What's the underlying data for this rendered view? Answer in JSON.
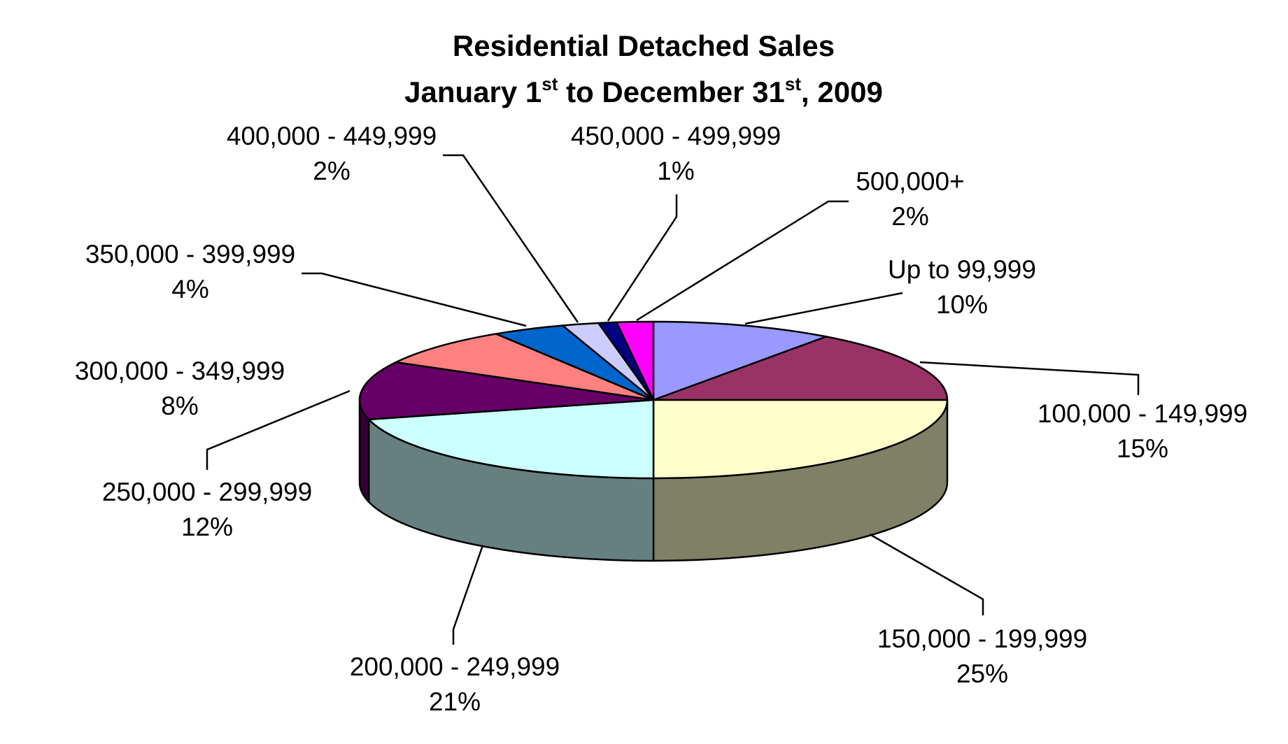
{
  "chart_data": {
    "type": "pie",
    "title_line1": "Residential Detached Sales",
    "title_line2": {
      "before_sup1": "January 1",
      "sup1": "st",
      "mid": " to December 31",
      "sup2": "st",
      "after": ", 2009"
    },
    "slices": [
      {
        "label": "Up to 99,999",
        "percent": "10%",
        "value": 10,
        "color": "#9999FF"
      },
      {
        "label": "100,000 - 149,999",
        "percent": "15%",
        "value": 15,
        "color": "#993366"
      },
      {
        "label": "150,000 - 199,999",
        "percent": "25%",
        "value": 25,
        "color": "#FFFFCC"
      },
      {
        "label": "200,000 - 249,999",
        "percent": "21%",
        "value": 21,
        "color": "#CCFFFF"
      },
      {
        "label": "250,000 - 299,999",
        "percent": "12%",
        "value": 12,
        "color": "#660066"
      },
      {
        "label": "300,000 - 349,999",
        "percent": "8%",
        "value": 8,
        "color": "#FF8080"
      },
      {
        "label": "350,000 - 399,999",
        "percent": "4%",
        "value": 4,
        "color": "#0066CC"
      },
      {
        "label": "400,000 - 449,999",
        "percent": "2%",
        "value": 2,
        "color": "#CCCCFF"
      },
      {
        "label": "450,000 - 499,999",
        "percent": "1%",
        "value": 1,
        "color": "#000080"
      },
      {
        "label": "500,000+",
        "percent": "2%",
        "value": 2,
        "color": "#FF00FF"
      }
    ],
    "legend": "none"
  }
}
